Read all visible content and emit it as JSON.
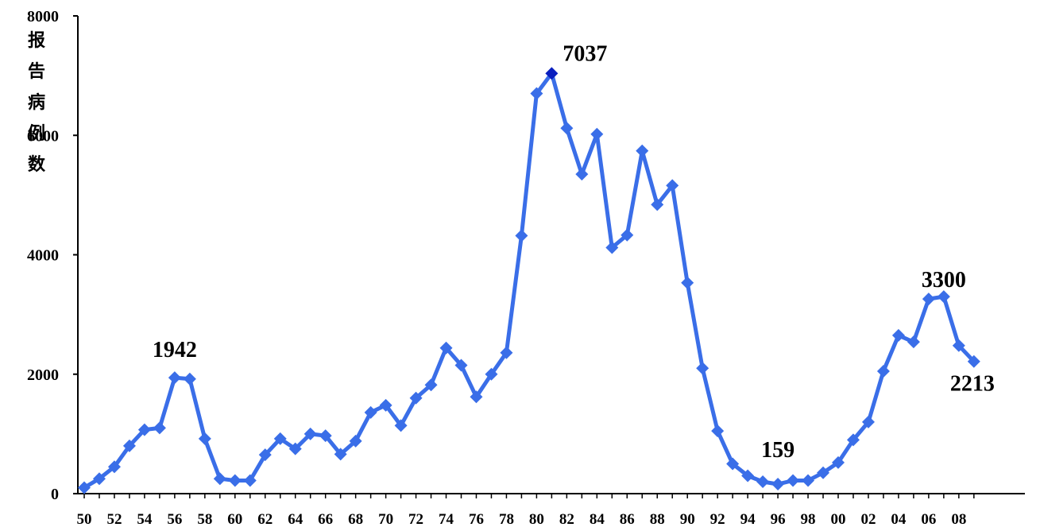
{
  "chart_data": {
    "type": "line",
    "ylabel": "报告病例数",
    "ylim": [
      0,
      8000
    ],
    "yticks": [
      0,
      2000,
      4000,
      6000,
      8000
    ],
    "xtick_labels": [
      "50",
      "52",
      "54",
      "56",
      "58",
      "60",
      "62",
      "64",
      "66",
      "68",
      "70",
      "72",
      "74",
      "76",
      "78",
      "80",
      "82",
      "84",
      "86",
      "88",
      "90",
      "92",
      "94",
      "96",
      "98",
      "00",
      "02",
      "04",
      "06",
      "08"
    ],
    "series": [
      {
        "color": "#3a6ee8",
        "highlight_color": "#0a1fbf",
        "x": [
          1950,
          1951,
          1952,
          1953,
          1954,
          1955,
          1956,
          1957,
          1958,
          1959,
          1960,
          1961,
          1962,
          1963,
          1964,
          1965,
          1966,
          1967,
          1968,
          1969,
          1970,
          1971,
          1972,
          1973,
          1974,
          1975,
          1976,
          1977,
          1978,
          1979,
          1980,
          1981,
          1982,
          1983,
          1984,
          1985,
          1986,
          1987,
          1988,
          1989,
          1990,
          1991,
          1992,
          1993,
          1994,
          1995,
          1996,
          1997,
          1998,
          1999,
          2000,
          2001,
          2002,
          2003,
          2004,
          2005,
          2006,
          2007,
          2008,
          2009
        ],
        "values": [
          100,
          250,
          450,
          800,
          1070,
          1100,
          1942,
          1920,
          920,
          250,
          220,
          220,
          650,
          920,
          750,
          1000,
          970,
          660,
          880,
          1360,
          1480,
          1140,
          1600,
          1820,
          2440,
          2150,
          1620,
          2000,
          2360,
          4320,
          6700,
          7037,
          6120,
          5350,
          6020,
          4120,
          4330,
          5740,
          4840,
          5160,
          3530,
          2100,
          1050,
          500,
          300,
          200,
          159,
          220,
          220,
          350,
          520,
          900,
          1200,
          2050,
          2650,
          2540,
          3260,
          3300,
          2480,
          2213
        ]
      }
    ],
    "annotations": [
      {
        "text": "1942",
        "x": 1956
      },
      {
        "text": "7037",
        "x": 1981
      },
      {
        "text": "159",
        "x": 1996
      },
      {
        "text": "3300",
        "x": 2007
      },
      {
        "text": "2213",
        "x": 2009
      }
    ]
  }
}
